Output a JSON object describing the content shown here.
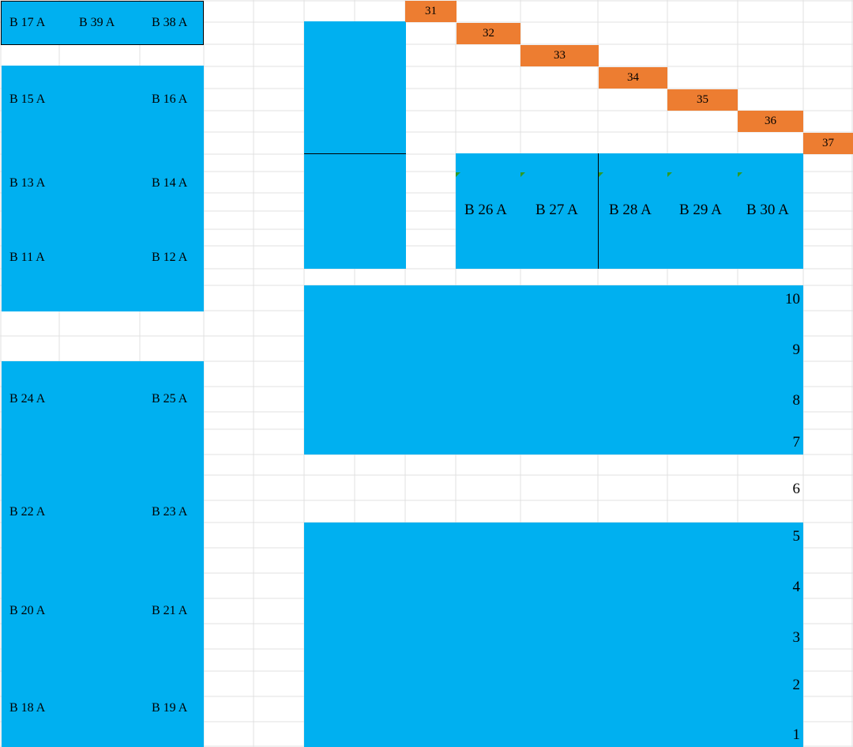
{
  "colors": {
    "block_fill": "#00b0f0",
    "step_fill": "#ed7d31",
    "grid_line": "#e1e1e1",
    "comment_marker": "#2e9b26"
  },
  "left_column": {
    "row1": [
      "B 17 A",
      "B 39 A",
      "B 38 A"
    ],
    "row2": [
      "B 15 A",
      "B 16 A"
    ],
    "row3": [
      "B 13 A",
      "B 14 A"
    ],
    "row4": [
      "B 11 A",
      "B 12 A"
    ],
    "row5": [
      "B 24 A",
      "B 25 A"
    ],
    "row6": [
      "B 22 A",
      "B 23 A"
    ],
    "row7": [
      "B 20 A",
      "B 21 A"
    ],
    "row8": [
      "B 18 A",
      "B 19 A"
    ]
  },
  "steps": [
    "31",
    "32",
    "33",
    "34",
    "35",
    "36",
    "37"
  ],
  "middle_row": [
    "B 26 A",
    "B 27 A",
    "B 28 A",
    "B 29 A",
    "B 30 A"
  ],
  "levels": [
    "10",
    "9",
    "8",
    "7",
    "6",
    "5",
    "4",
    "3",
    "2",
    "1"
  ]
}
